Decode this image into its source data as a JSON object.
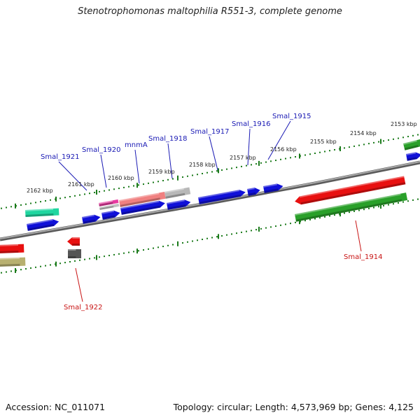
{
  "title": "Stenotrophomonas maltophilia R551-3, complete genome",
  "footer": {
    "accession": "Accession: NC_011071",
    "topology": "Topology: circular; Length: 4,573,969 bp; Genes: 4,125"
  },
  "colors": {
    "forward_cds": "#1010d8",
    "reverse_cds": "#e81010",
    "gene_green": "#2aa02a",
    "gene_teal": "#1fd6a0",
    "gene_olive": "#b8b070",
    "gene_gray": "#555555",
    "gene_pink": "#e83aa0",
    "backbone": "#808080",
    "tick": "#1a7a1a",
    "label_forward": "#1a1ab4",
    "label_reverse": "#c81414"
  },
  "ticks": [
    {
      "label": "2162 kbp"
    },
    {
      "label": "2161 kbp"
    },
    {
      "label": "2160 kbp"
    },
    {
      "label": "2159 kbp"
    },
    {
      "label": "2158 kbp"
    },
    {
      "label": "2157 kbp"
    },
    {
      "label": "2156 kbp"
    },
    {
      "label": "2155 kbp"
    },
    {
      "label": "2154 kbp"
    },
    {
      "label": "2153 kbp"
    }
  ],
  "gene_labels": [
    {
      "text": "Smal_1921",
      "strand": "forward"
    },
    {
      "text": "Smal_1920",
      "strand": "forward"
    },
    {
      "text": "mnmA",
      "strand": "forward"
    },
    {
      "text": "Smal_1918",
      "strand": "forward"
    },
    {
      "text": "Smal_1917",
      "strand": "forward"
    },
    {
      "text": "Smal_1916",
      "strand": "forward"
    },
    {
      "text": "Smal_1915",
      "strand": "forward"
    },
    {
      "text": "Smal_1922",
      "strand": "reverse"
    },
    {
      "text": "Smal_1914",
      "strand": "reverse"
    }
  ]
}
